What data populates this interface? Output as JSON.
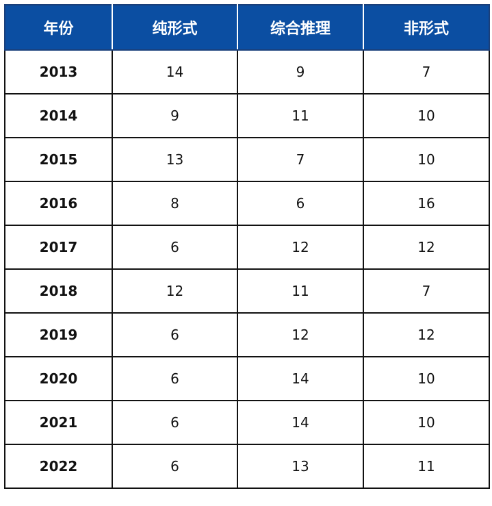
{
  "colors": {
    "header_background": "#0b4ea2",
    "header_text": "#ffffff",
    "grid": "#111111"
  },
  "chart_data": {
    "type": "table",
    "columns": [
      "年份",
      "纯形式",
      "综合推理",
      "非形式"
    ],
    "rows": [
      [
        "2013",
        "14",
        "9",
        "7"
      ],
      [
        "2014",
        "9",
        "11",
        "10"
      ],
      [
        "2015",
        "13",
        "7",
        "10"
      ],
      [
        "2016",
        "8",
        "6",
        "16"
      ],
      [
        "2017",
        "6",
        "12",
        "12"
      ],
      [
        "2018",
        "12",
        "11",
        "7"
      ],
      [
        "2019",
        "6",
        "12",
        "12"
      ],
      [
        "2020",
        "6",
        "14",
        "10"
      ],
      [
        "2021",
        "6",
        "14",
        "10"
      ],
      [
        "2022",
        "6",
        "13",
        "11"
      ]
    ]
  }
}
